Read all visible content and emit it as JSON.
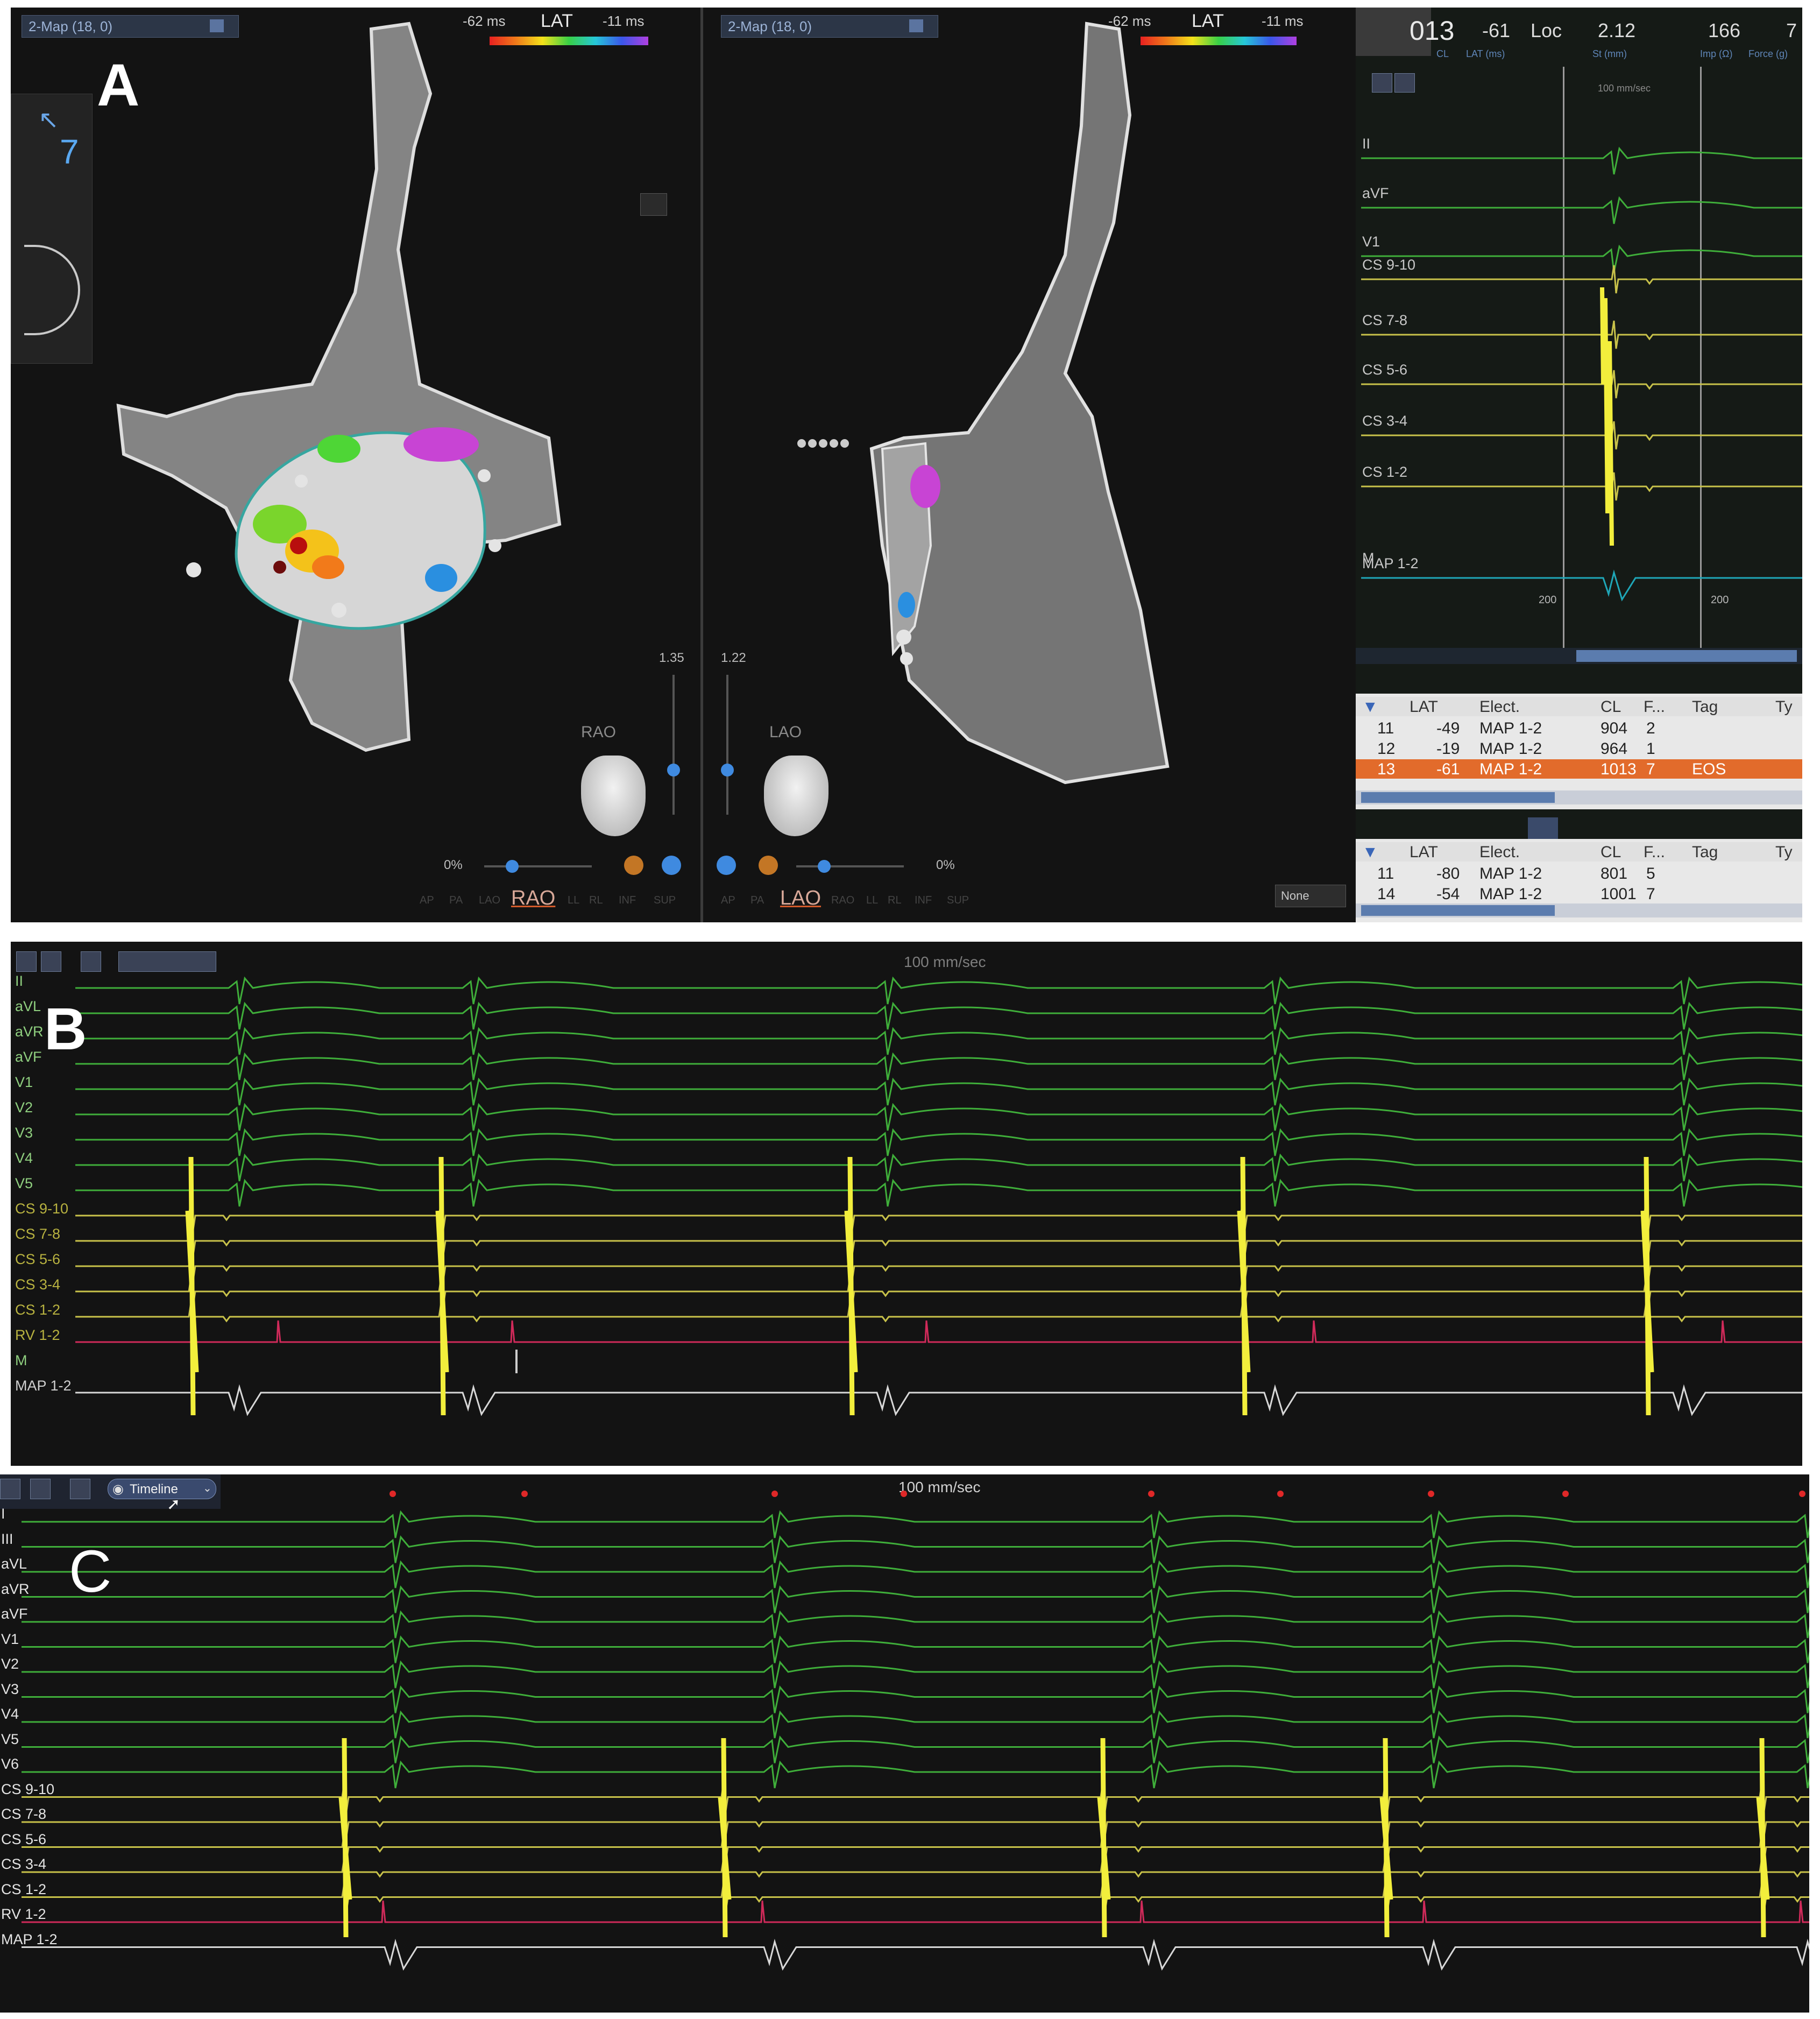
{
  "panel_a": {
    "letter": "A",
    "left_map": {
      "title": "2-Map (18, 0)",
      "scale_min": "-62 ms",
      "scale_label": "LAT",
      "scale_max": "-11 ms",
      "view_label": "RAO",
      "view_selected": "RAO",
      "view_options": [
        "AP",
        "PA",
        "LAO",
        "RAO",
        "LL",
        "RL",
        "INF",
        "SUP"
      ],
      "zoom": "1.35",
      "opacity": "0%"
    },
    "right_map": {
      "title": "2-Map (18, 0)",
      "scale_min": "-62 ms",
      "scale_label": "LAT",
      "scale_max": "-11 ms",
      "view_label": "LAO",
      "view_selected": "LAO",
      "view_options": [
        "AP",
        "PA",
        "LAO",
        "RAO",
        "LL",
        "RL",
        "INF",
        "SUP"
      ],
      "zoom": "1.22",
      "opacity": "0%",
      "none_button": "None"
    },
    "compass_value": "7",
    "egm_header": {
      "point_number": "013",
      "lat": "-61",
      "loc": "Loc",
      "stability": "2.12",
      "impedance": "166",
      "force": "7",
      "cl_label": "CL",
      "lat_label": "LAT (ms)",
      "st_label": "St (mm)",
      "imp_label": "Imp (Ω)",
      "force_label": "Force (g)"
    },
    "egm_channels": [
      "II",
      "aVF",
      "V1",
      "CS 9-10",
      "CS 7-8",
      "CS 5-6",
      "CS 3-4",
      "CS 1-2",
      "M",
      "MAP 1-2"
    ],
    "egm_speed": "100 mm/sec",
    "egm_marks": [
      "200",
      "200"
    ],
    "table1": {
      "headers": [
        "LAT",
        "Elect.",
        "CL",
        "F...",
        "Tag",
        "Ty"
      ],
      "rows": [
        [
          "11",
          "-49",
          "MAP 1-2",
          "904",
          "2",
          ""
        ],
        [
          "12",
          "-19",
          "MAP 1-2",
          "964",
          "1",
          ""
        ],
        [
          "13",
          "-61",
          "MAP 1-2",
          "1013",
          "7",
          "EOS"
        ]
      ],
      "selected_row": 2
    },
    "table2": {
      "headers": [
        "LAT",
        "Elect.",
        "CL",
        "F...",
        "Tag",
        "Ty"
      ],
      "rows": [
        [
          "11",
          "-80",
          "MAP 1-2",
          "801",
          "5",
          ""
        ],
        [
          "14",
          "-54",
          "MAP 1-2",
          "1001",
          "7",
          ""
        ]
      ]
    }
  },
  "panel_b": {
    "letter": "B",
    "speed": "100 mm/sec",
    "channels": [
      "II",
      "aVL",
      "aVR",
      "aVF",
      "V1",
      "V2",
      "V3",
      "V4",
      "V5",
      "CS 9-10",
      "CS 7-8",
      "CS 5-6",
      "CS 3-4",
      "CS 1-2",
      "RV 1-2",
      "M",
      "MAP 1-2"
    ]
  },
  "panel_c": {
    "letter": "C",
    "speed": "100 mm/sec",
    "timeline_button": "Timeline",
    "channels": [
      "I",
      "III",
      "aVL",
      "aVR",
      "aVF",
      "V1",
      "V2",
      "V3",
      "V4",
      "V5",
      "V6",
      "CS 9-10",
      "CS 7-8",
      "CS 5-6",
      "CS 3-4",
      "CS 1-2",
      "RV 1-2",
      "MAP 1-2"
    ]
  },
  "colors": {
    "surface_ecg": "#3fae3a",
    "cs_channel": "#c8c24a",
    "cs_spike": "#f2ee3c",
    "rv_channel": "#d02a5a",
    "map_channel": "#d8d8d8",
    "map_teal": "#1fa7b8",
    "selected_row": "#e26b2b",
    "background": "#131313"
  }
}
